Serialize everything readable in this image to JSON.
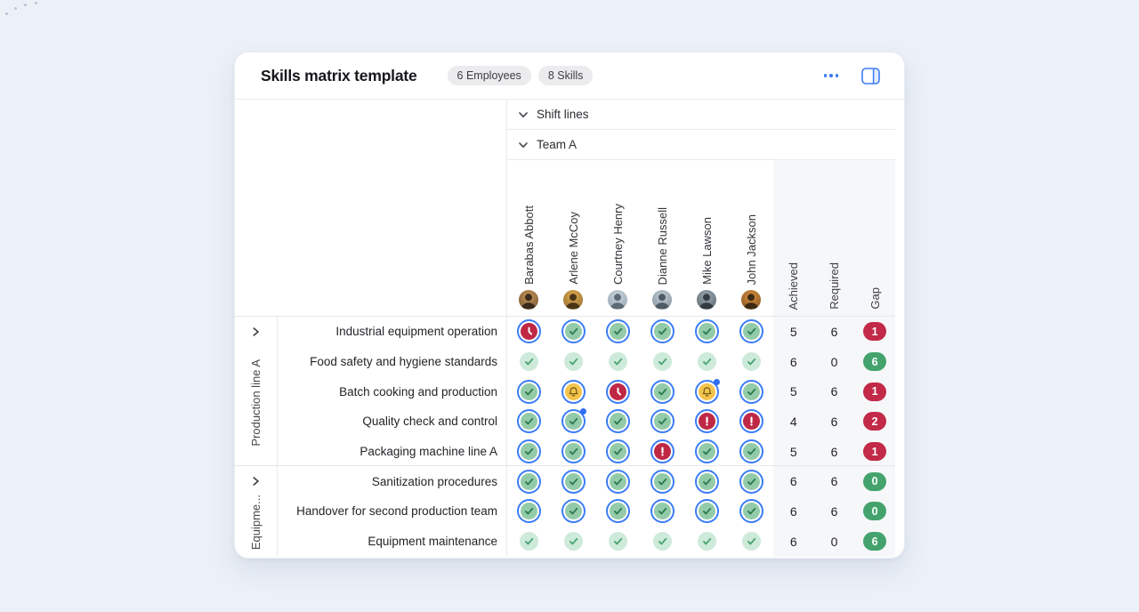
{
  "page": {
    "background": "#ecf1f8",
    "accent": "#3b7cf6"
  },
  "header": {
    "title": "Skills matrix template",
    "badges": [
      "6 Employees",
      "8 Skills"
    ],
    "menu_icon": "ellipsis-icon",
    "panel_icon": "split-view-icon"
  },
  "table": {
    "section_rows": [
      {
        "label": "Shift lines",
        "icon": "chevron-down-icon"
      },
      {
        "label": "Team A",
        "icon": "chevron-down-icon"
      }
    ],
    "employees": [
      {
        "name": "Barabas Abbott",
        "avatar": {
          "bg1": "#c79455",
          "bg2": "#6d5132",
          "fg": "#3a2a1c"
        }
      },
      {
        "name": "Arlene McCoy",
        "avatar": {
          "bg1": "#e0aa4e",
          "bg2": "#8a6a2e",
          "fg": "#4a3418"
        }
      },
      {
        "name": "Courtney Henry",
        "avatar": {
          "bg1": "#cdd6dd",
          "bg2": "#8da0ad",
          "fg": "#5d6b76"
        }
      },
      {
        "name": "Dianne Russell",
        "avatar": {
          "bg1": "#c2cdd4",
          "bg2": "#7f8d98",
          "fg": "#4e5a64"
        }
      },
      {
        "name": "Mike Lawson",
        "avatar": {
          "bg1": "#9aa6ae",
          "bg2": "#5a656d",
          "fg": "#333c43"
        }
      },
      {
        "name": "John Jackson",
        "avatar": {
          "bg1": "#d98f3e",
          "bg2": "#7a4f20",
          "fg": "#3c2a12"
        }
      }
    ],
    "stat_columns": [
      "Achieved",
      "Required",
      "Gap"
    ],
    "status_colors": {
      "ring": "#3b7cf6",
      "dot": "#2e6ff2",
      "check_bg": "#93cba8",
      "check_glyph": "#2c7a4f",
      "plain_bg": "#cdeada",
      "plain_glyph": "#4aa472",
      "bell_bg": "#f4c34c",
      "bell_glyph": "#6f5912",
      "clock_bg": "#bf2845",
      "clock_glyph": "#ffffff",
      "alert_bg": "#bf2845",
      "alert_glyph": "#ffffff",
      "gap_red": "#c22a47",
      "gap_green": "#44a36d"
    },
    "skill_groups": [
      {
        "label": "Production line A",
        "skills": [
          {
            "name": "Industrial equipment operation",
            "statuses": [
              "clock",
              "check",
              "check",
              "check",
              "check",
              "check"
            ],
            "achieved": "5",
            "required": "6",
            "gap": "1",
            "gap_color": "red"
          },
          {
            "name": "Food safety and hygiene standards",
            "statuses": [
              "check-plain",
              "check-plain",
              "check-plain",
              "check-plain",
              "check-plain",
              "check-plain"
            ],
            "achieved": "6",
            "required": "0",
            "gap": "6",
            "gap_color": "green"
          },
          {
            "name": "Batch cooking and production",
            "statuses": [
              "check",
              "bell",
              "clock",
              "check",
              "bell-dot",
              "check"
            ],
            "achieved": "5",
            "required": "6",
            "gap": "1",
            "gap_color": "red"
          },
          {
            "name": "Quality check and control",
            "statuses": [
              "check",
              "check-dot",
              "check",
              "check",
              "alert",
              "alert"
            ],
            "achieved": "4",
            "required": "6",
            "gap": "2",
            "gap_color": "red"
          },
          {
            "name": "Packaging machine line A",
            "statuses": [
              "check",
              "check",
              "check",
              "alert",
              "check",
              "check"
            ],
            "achieved": "5",
            "required": "6",
            "gap": "1",
            "gap_color": "red"
          }
        ]
      },
      {
        "label": "Equipme...",
        "skills": [
          {
            "name": "Sanitization procedures",
            "statuses": [
              "check",
              "check",
              "check",
              "check",
              "check",
              "check"
            ],
            "achieved": "6",
            "required": "6",
            "gap": "0",
            "gap_color": "green"
          },
          {
            "name": "Handover for second production team",
            "statuses": [
              "check",
              "check",
              "check",
              "check",
              "check",
              "check"
            ],
            "achieved": "6",
            "required": "6",
            "gap": "0",
            "gap_color": "green"
          },
          {
            "name": "Equipment maintenance",
            "statuses": [
              "check-plain",
              "check-plain",
              "check-plain",
              "check-plain",
              "check-plain",
              "check-plain"
            ],
            "achieved": "6",
            "required": "0",
            "gap": "6",
            "gap_color": "green"
          }
        ]
      }
    ]
  }
}
